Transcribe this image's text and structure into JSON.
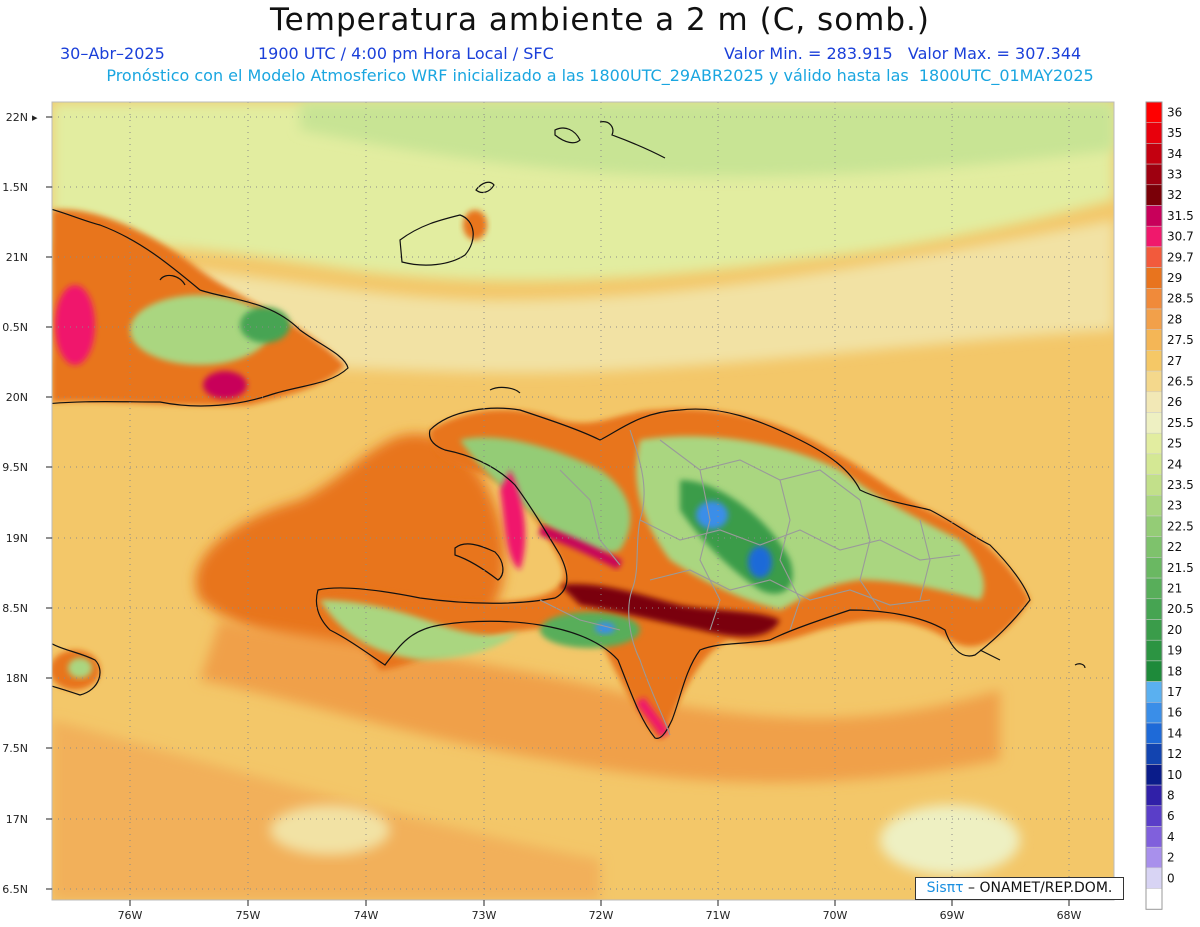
{
  "header": {
    "title": "Temperatura ambiente a 2 m (C, somb.)",
    "date": "30–Abr–2025",
    "time_info": "1900 UTC / 4:00 pm Hora Local / SFC",
    "value_range": "Valor Min. = 283.915   Valor Max. = 307.344",
    "model_info": "Pronóstico con el Modelo Atmosferico WRF inicializado a las 1800UTC_29ABR2025 y válido hasta las  1800UTC_01MAY2025"
  },
  "axes": {
    "lat_labels": [
      "22N",
      "1.5N",
      "21N",
      "0.5N",
      "20N",
      "9.5N",
      "19N",
      "8.5N",
      "18N",
      "7.5N",
      "17N",
      "6.5N"
    ],
    "lon_labels": [
      "76W",
      "75W",
      "74W",
      "73W",
      "72W",
      "71W",
      "70W",
      "69W",
      "68W"
    ]
  },
  "colorbar": {
    "levels": [
      {
        "label": "36",
        "color": "#ff0000"
      },
      {
        "label": "35",
        "color": "#e8000c"
      },
      {
        "label": "34",
        "color": "#c40010"
      },
      {
        "label": "33",
        "color": "#9e0010"
      },
      {
        "label": "32",
        "color": "#7a0008"
      },
      {
        "label": "31.5",
        "color": "#c8005a"
      },
      {
        "label": "30.7",
        "color": "#f0186c"
      },
      {
        "label": "29.7",
        "color": "#f25a3c"
      },
      {
        "label": "29",
        "color": "#e8741e"
      },
      {
        "label": "28.5",
        "color": "#f08a3a"
      },
      {
        "label": "28",
        "color": "#f2a04a"
      },
      {
        "label": "27.5",
        "color": "#f4b656"
      },
      {
        "label": "27",
        "color": "#f5c866"
      },
      {
        "label": "26.5",
        "color": "#f4d88c"
      },
      {
        "label": "26",
        "color": "#f2e8b6"
      },
      {
        "label": "25.5",
        "color": "#eef0c2"
      },
      {
        "label": "25",
        "color": "#e2eda0"
      },
      {
        "label": "24",
        "color": "#d4e894"
      },
      {
        "label": "23.5",
        "color": "#c2e08a"
      },
      {
        "label": "23",
        "color": "#aad680"
      },
      {
        "label": "22.5",
        "color": "#94cc76"
      },
      {
        "label": "22",
        "color": "#7ec26c"
      },
      {
        "label": "21.5",
        "color": "#6ab862"
      },
      {
        "label": "21",
        "color": "#58ae5a"
      },
      {
        "label": "20.5",
        "color": "#46a452"
      },
      {
        "label": "20",
        "color": "#3a9c4a"
      },
      {
        "label": "19",
        "color": "#2c9442"
      },
      {
        "label": "18",
        "color": "#1e8a3a"
      },
      {
        "label": "17",
        "color": "#5ab0f0"
      },
      {
        "label": "16",
        "color": "#3a8ee8"
      },
      {
        "label": "14",
        "color": "#1e6ad8"
      },
      {
        "label": "12",
        "color": "#1244b0"
      },
      {
        "label": "10",
        "color": "#0a1c8a"
      },
      {
        "label": "8",
        "color": "#3020a8"
      },
      {
        "label": "6",
        "color": "#5a3ec8"
      },
      {
        "label": "4",
        "color": "#8060dc"
      },
      {
        "label": "2",
        "color": "#a890ec"
      },
      {
        "label": "0",
        "color": "#d8d4f4"
      },
      {
        "label": "",
        "color": "#ffffff"
      }
    ]
  },
  "credit": {
    "logo": "Sisπτ",
    "text": " – ONAMET/REP.DOM."
  },
  "map_colors": {
    "background": "#f3c769",
    "border_coast": "#111111",
    "province_lines": "#9a9a9a",
    "grid": "#8a8a8a"
  }
}
